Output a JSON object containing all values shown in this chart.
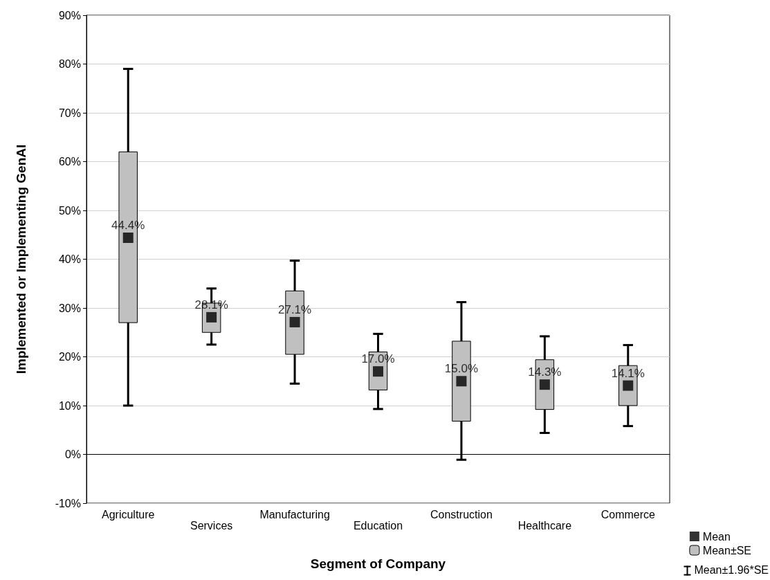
{
  "chart_data": {
    "type": "box",
    "xlabel": "Segment of Company",
    "ylabel": "Implemented or Implementing GenAI",
    "categories": [
      "Agriculture",
      "Services",
      "Manufacturing",
      "Education",
      "Construction",
      "Healthcare",
      "Commerce"
    ],
    "series": [
      {
        "name": "Mean±SE",
        "color": "#c0c0c0",
        "boxes": [
          {
            "low": 10,
            "q1": 27,
            "q3": 62,
            "high": 79
          },
          {
            "low": 22.5,
            "q1": 25,
            "q3": 31,
            "high": 34
          },
          {
            "low": 14.5,
            "q1": 20.5,
            "q3": 33.5,
            "high": 39.7
          },
          {
            "low": 9.3,
            "q1": 13.2,
            "q3": 21,
            "high": 24.7
          },
          {
            "low": -1.1,
            "q1": 6.8,
            "q3": 23.2,
            "high": 31.2
          },
          {
            "low": 4.4,
            "q1": 9.2,
            "q3": 19.4,
            "high": 24.2
          },
          {
            "low": 5.8,
            "q1": 10,
            "q3": 18.2,
            "high": 22.4
          }
        ]
      },
      {
        "type": "scatter",
        "name": "Mean",
        "color": "#000000",
        "x": [
          "Agriculture",
          "Services",
          "Manufacturing",
          "Education",
          "Construction",
          "Healthcare",
          "Commerce"
        ],
        "values": [
          44.4,
          28.1,
          27.1,
          17.0,
          15.0,
          14.3,
          14.1
        ],
        "value_labels": [
          "44.4%",
          "28.1%",
          "27.1%",
          "17.0%",
          "15.0%",
          "14.3%",
          "14.1%"
        ]
      }
    ],
    "annotations": [
      "Mean±1.96*SE"
    ],
    "ylim": [
      -10,
      90
    ],
    "yticks": [
      {
        "value": -10,
        "label": "-10%"
      },
      {
        "value": 0,
        "label": "0%"
      },
      {
        "value": 10,
        "label": "10%"
      },
      {
        "value": 20,
        "label": "20%"
      },
      {
        "value": 30,
        "label": "30%"
      },
      {
        "value": 40,
        "label": "40%"
      },
      {
        "value": 50,
        "label": "50%"
      },
      {
        "value": 60,
        "label": "60%"
      },
      {
        "value": 70,
        "label": "70%"
      },
      {
        "value": 80,
        "label": "80%"
      },
      {
        "value": 90,
        "label": "90%"
      }
    ],
    "grid": "y",
    "legend": "bottom right",
    "marker": "square"
  }
}
